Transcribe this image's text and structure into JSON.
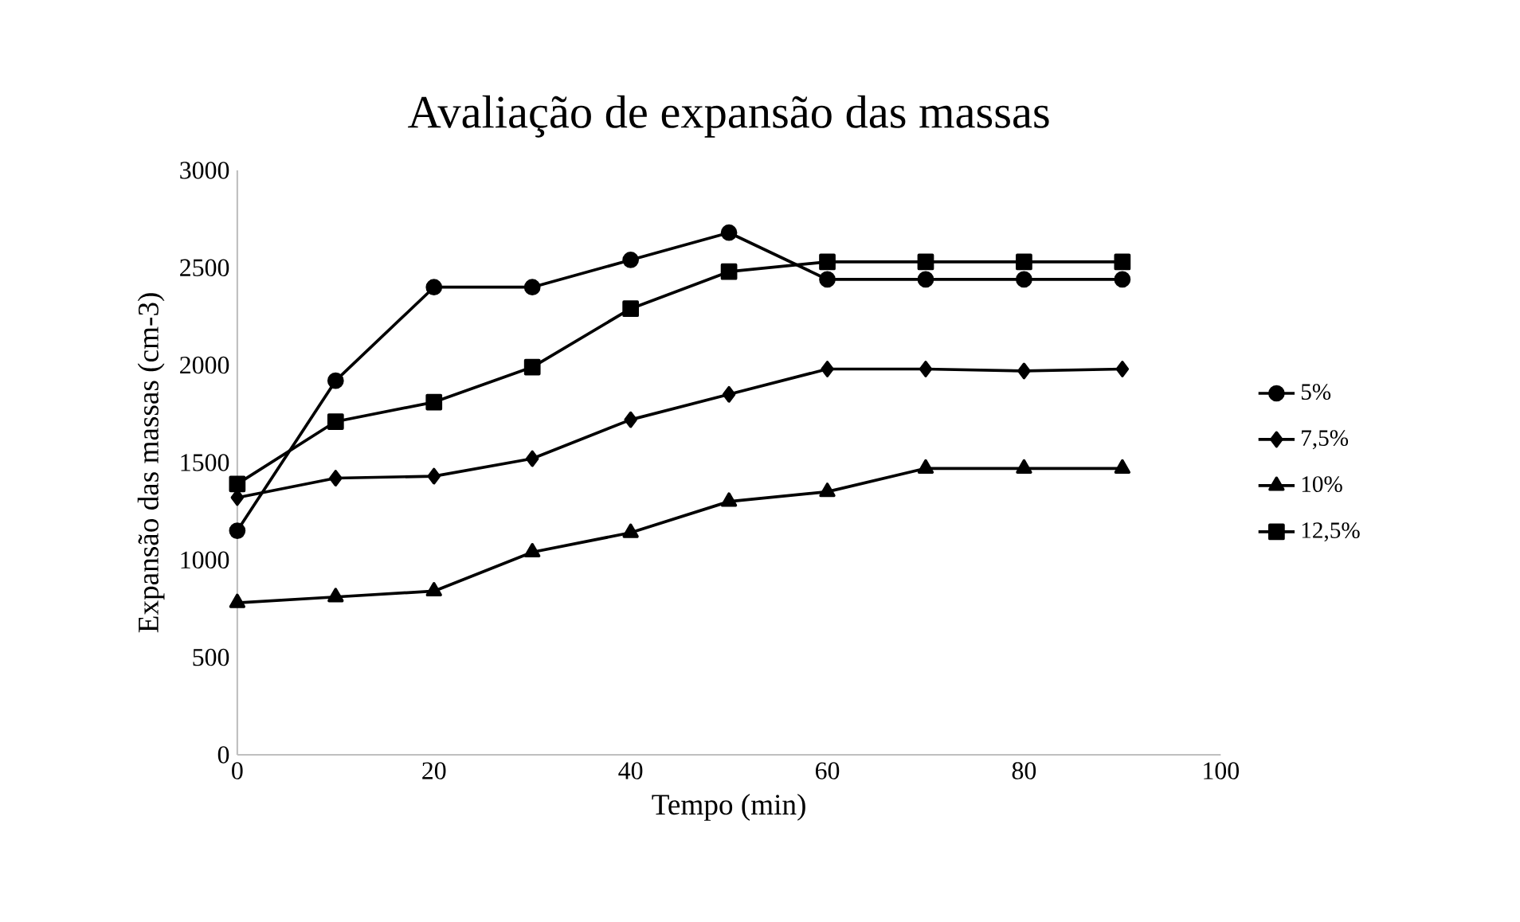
{
  "chart_data": {
    "type": "line",
    "title": "Avaliação de expansão das massas",
    "xlabel": "Tempo (min)",
    "ylabel": "Expansão das massas (cm-3)",
    "x": [
      0,
      10,
      20,
      30,
      40,
      50,
      60,
      70,
      80,
      90
    ],
    "series": [
      {
        "name": "5%",
        "color": "#000000",
        "marker": "circle",
        "values": [
          1150,
          1920,
          2400,
          2400,
          2540,
          2680,
          2440,
          2440,
          2440,
          2440
        ]
      },
      {
        "name": "7,5%",
        "color": "#000000",
        "marker": "diamond",
        "values": [
          1320,
          1420,
          1430,
          1520,
          1720,
          1850,
          1980,
          1980,
          1970,
          1980
        ]
      },
      {
        "name": "10%",
        "color": "#000000",
        "marker": "triangle",
        "values": [
          780,
          810,
          840,
          1040,
          1140,
          1300,
          1350,
          1470,
          1470,
          1470
        ]
      },
      {
        "name": "12,5%",
        "color": "#000000",
        "marker": "square",
        "values": [
          1390,
          1710,
          1810,
          1990,
          2290,
          2480,
          2530,
          2530,
          2530,
          2530
        ]
      }
    ],
    "xlim": [
      0,
      100
    ],
    "xticks": [
      0,
      20,
      40,
      60,
      80,
      100
    ],
    "ylim": [
      0,
      3000
    ],
    "yticks": [
      0,
      500,
      1000,
      1500,
      2000,
      2500,
      3000
    ],
    "grid": false,
    "legend": "right",
    "line_style": "solid"
  }
}
